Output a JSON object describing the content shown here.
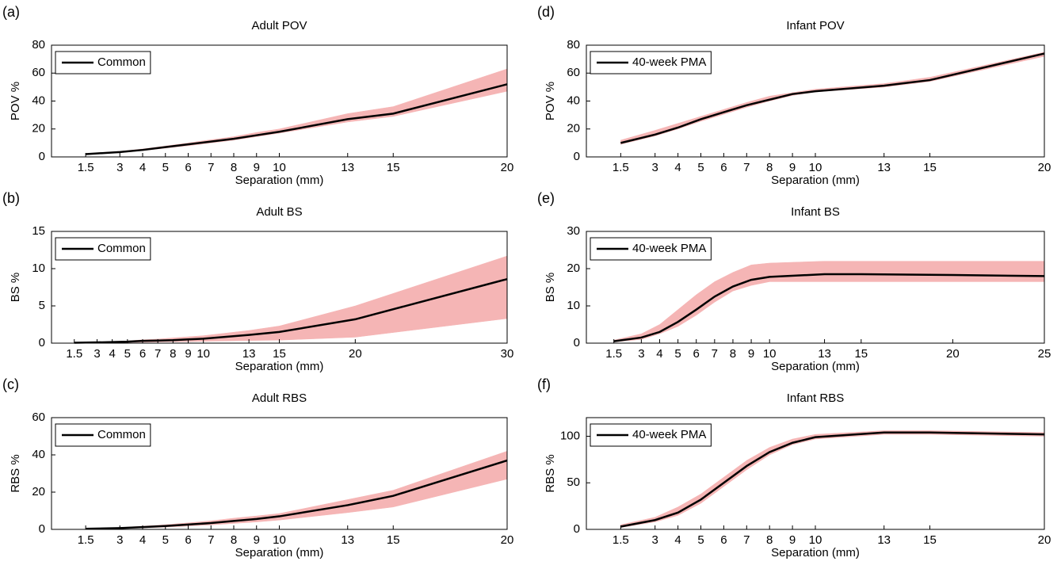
{
  "chart_data": [
    {
      "type": "line",
      "panel": "(a)",
      "title": "Adult POV",
      "xlabel": "Separation (mm)",
      "ylabel": "POV %",
      "x": [
        1.5,
        3,
        4,
        5,
        6,
        7,
        8,
        9,
        10,
        13,
        15,
        20
      ],
      "xlim": [
        0,
        20
      ],
      "xticks": [
        1.5,
        3,
        4,
        5,
        6,
        7,
        8,
        9,
        10,
        13,
        15,
        20
      ],
      "ylim": [
        0,
        80
      ],
      "yticks": [
        0,
        20,
        40,
        60,
        80
      ],
      "legend": "upper left",
      "series": [
        {
          "name": "Common",
          "color": "#000000",
          "band_color": "#f5b5b5",
          "values": [
            2,
            3.5,
            5,
            7,
            9,
            11,
            13,
            15.5,
            18,
            27,
            31,
            52
          ],
          "lower": [
            1.7,
            3,
            4.5,
            6.3,
            8,
            10,
            12,
            14.5,
            17,
            25,
            29,
            47
          ],
          "upper": [
            2.4,
            4,
            5.7,
            7.8,
            10,
            12.3,
            14.5,
            17.5,
            20,
            31,
            36,
            63
          ]
        }
      ]
    },
    {
      "type": "line",
      "panel": "(b)",
      "title": "Adult BS",
      "xlabel": "Separation (mm)",
      "ylabel": "BS %",
      "x": [
        1.5,
        3,
        4,
        5,
        6,
        7,
        8,
        9,
        10,
        13,
        15,
        20,
        30
      ],
      "xlim": [
        0,
        30
      ],
      "xticks": [
        1.5,
        3,
        4,
        5,
        6,
        7,
        8,
        9,
        10,
        13,
        15,
        20,
        30
      ],
      "ylim": [
        0,
        15
      ],
      "yticks": [
        0,
        5,
        10,
        15
      ],
      "legend": "upper left",
      "series": [
        {
          "name": "Common",
          "color": "#000000",
          "band_color": "#f5b5b5",
          "values": [
            0.05,
            0.1,
            0.15,
            0.2,
            0.3,
            0.35,
            0.4,
            0.5,
            0.6,
            1.1,
            1.5,
            3.2,
            8.6
          ],
          "lower": [
            0.03,
            0.05,
            0.08,
            0.1,
            0.12,
            0.15,
            0.18,
            0.2,
            0.25,
            0.35,
            0.4,
            0.8,
            3.3
          ],
          "upper": [
            0.08,
            0.15,
            0.22,
            0.3,
            0.45,
            0.55,
            0.7,
            0.85,
            1,
            1.7,
            2.3,
            5,
            11.7
          ]
        }
      ]
    },
    {
      "type": "line",
      "panel": "(c)",
      "title": "Adult RBS",
      "xlabel": "Separation (mm)",
      "ylabel": "RBS %",
      "x": [
        1.5,
        3,
        4,
        5,
        6,
        7,
        8,
        9,
        10,
        13,
        15,
        20
      ],
      "xlim": [
        0,
        20
      ],
      "xticks": [
        1.5,
        3,
        4,
        5,
        6,
        7,
        8,
        9,
        10,
        13,
        15,
        20
      ],
      "ylim": [
        0,
        60
      ],
      "yticks": [
        0,
        20,
        40,
        60
      ],
      "legend": "upper left",
      "series": [
        {
          "name": "Common",
          "color": "#000000",
          "band_color": "#f5b5b5",
          "values": [
            0.3,
            0.7,
            1.2,
            1.8,
            2.6,
            3.4,
            4.5,
            5.6,
            7,
            13,
            18,
            37
          ],
          "lower": [
            0.2,
            0.5,
            0.8,
            1.2,
            1.8,
            2.4,
            3.2,
            4,
            5,
            9,
            12,
            27
          ],
          "upper": [
            0.5,
            1,
            1.7,
            2.5,
            3.5,
            4.6,
            6,
            7.2,
            8.5,
            16,
            21,
            42
          ]
        }
      ]
    },
    {
      "type": "line",
      "panel": "(d)",
      "title": "Infant POV",
      "xlabel": "Separation (mm)",
      "ylabel": "POV %",
      "x": [
        1.5,
        3,
        4,
        5,
        6,
        7,
        8,
        9,
        10,
        13,
        15,
        20
      ],
      "xlim": [
        0,
        20
      ],
      "xticks": [
        1.5,
        3,
        4,
        5,
        6,
        7,
        8,
        9,
        10,
        13,
        15,
        20
      ],
      "ylim": [
        0,
        80
      ],
      "yticks": [
        0,
        20,
        40,
        60,
        80
      ],
      "legend": "upper left",
      "series": [
        {
          "name": "40-week PMA",
          "color": "#000000",
          "band_color": "#f5b5b5",
          "values": [
            10,
            16,
            21,
            27,
            32,
            37,
            41,
            45,
            47,
            51,
            55,
            74
          ],
          "lower": [
            9,
            15,
            20,
            25.5,
            30.5,
            35.5,
            40,
            44,
            46.5,
            50,
            54,
            72
          ],
          "upper": [
            12,
            19,
            24,
            29,
            34,
            39,
            43.5,
            46,
            48.5,
            52.5,
            57,
            75
          ]
        }
      ]
    },
    {
      "type": "line",
      "panel": "(e)",
      "title": "Infant BS",
      "xlabel": "Separation (mm)",
      "ylabel": "BS %",
      "x": [
        1.5,
        3,
        4,
        5,
        6,
        7,
        8,
        9,
        10,
        13,
        15,
        20,
        25
      ],
      "xlim": [
        0,
        25
      ],
      "xticks": [
        1.5,
        3,
        4,
        5,
        6,
        7,
        8,
        9,
        10,
        13,
        15,
        20,
        25
      ],
      "ylim": [
        0,
        30
      ],
      "yticks": [
        0,
        10,
        20,
        30
      ],
      "legend": "upper left",
      "series": [
        {
          "name": "40-week PMA",
          "color": "#000000",
          "band_color": "#f5b5b5",
          "values": [
            0.5,
            1.5,
            3,
            5.7,
            9,
            12.5,
            15.2,
            17,
            17.8,
            18.5,
            18.5,
            18.3,
            18
          ],
          "lower": [
            0.3,
            1,
            2.5,
            4.5,
            7.5,
            11,
            14,
            15.5,
            16.5,
            16.5,
            16.5,
            16.5,
            16.5
          ],
          "upper": [
            0.8,
            2.5,
            5,
            9,
            13,
            16.5,
            19,
            21,
            21.5,
            22,
            22,
            22,
            22
          ]
        }
      ]
    },
    {
      "type": "line",
      "panel": "(f)",
      "title": "Infant RBS",
      "xlabel": "Separation (mm)",
      "ylabel": "RBS %",
      "x": [
        1.5,
        3,
        4,
        5,
        6,
        7,
        8,
        9,
        10,
        13,
        15,
        20
      ],
      "xlim": [
        0,
        20
      ],
      "xticks": [
        1.5,
        3,
        4,
        5,
        6,
        7,
        8,
        9,
        10,
        13,
        15,
        20
      ],
      "ylim": [
        0,
        120
      ],
      "yticks": [
        0,
        50,
        100
      ],
      "legend": "upper left",
      "series": [
        {
          "name": "40-week PMA",
          "color": "#000000",
          "band_color": "#f5b5b5",
          "values": [
            3,
            10,
            18,
            32,
            50,
            68,
            83,
            93,
            99,
            104,
            104,
            102
          ],
          "lower": [
            2,
            8,
            15,
            28,
            46,
            64,
            80,
            91,
            97,
            102,
            102,
            100
          ],
          "upper": [
            5,
            13,
            24,
            38,
            56,
            74,
            88,
            97,
            102,
            106,
            106,
            104
          ]
        }
      ]
    }
  ]
}
